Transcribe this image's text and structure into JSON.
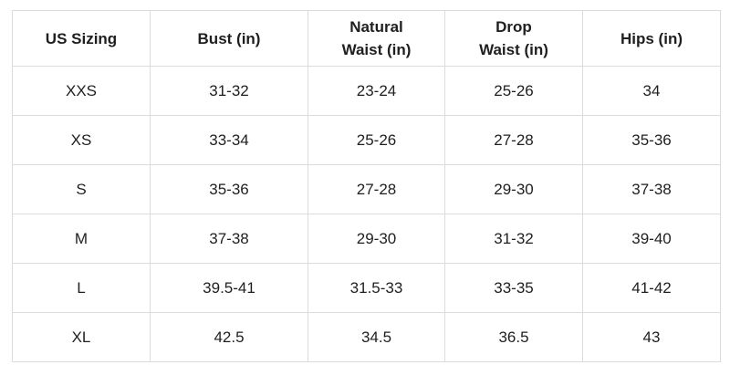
{
  "table": {
    "headers": [
      {
        "lines": [
          "US Sizing"
        ]
      },
      {
        "lines": [
          "Bust (in)"
        ]
      },
      {
        "lines": [
          "Natural",
          "Waist (in)"
        ]
      },
      {
        "lines": [
          "Drop",
          "Waist (in)"
        ]
      },
      {
        "lines": [
          "Hips (in)"
        ]
      }
    ],
    "rows": [
      [
        "XXS",
        "31-32",
        "23-24",
        "25-26",
        "34"
      ],
      [
        "XS",
        "33-34",
        "25-26",
        "27-28",
        "35-36"
      ],
      [
        "S",
        "35-36",
        "27-28",
        "29-30",
        "37-38"
      ],
      [
        "M",
        "37-38",
        "29-30",
        "31-32",
        "39-40"
      ],
      [
        "L",
        "39.5-41",
        "31.5-33",
        "33-35",
        "41-42"
      ],
      [
        "XL",
        "42.5",
        "34.5",
        "36.5",
        "43"
      ]
    ]
  }
}
